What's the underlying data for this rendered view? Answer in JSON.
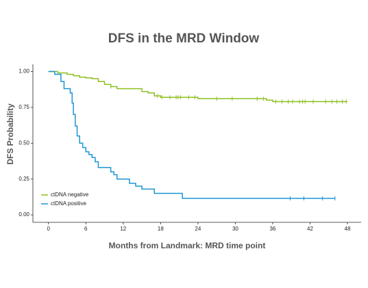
{
  "chart_data": {
    "type": "step",
    "title": "DFS in the MRD Window",
    "x_label": "Months from Landmark: MRD time point",
    "y_label": "DFS Probability",
    "xlim": [
      -2.5,
      50.2
    ],
    "ylim": [
      -0.052,
      1.05
    ],
    "xticks": [
      0,
      6,
      12,
      18,
      24,
      30,
      36,
      42,
      48
    ],
    "yticks": [
      {
        "value": 0,
        "label": "0.00"
      },
      {
        "value": 0.25,
        "label": "0.25"
      },
      {
        "value": 0.5,
        "label": "0.50"
      },
      {
        "value": 0.75,
        "label": "0.75"
      },
      {
        "value": 1,
        "label": "1.00"
      }
    ],
    "grid": false,
    "legend": "bottom-left",
    "series": [
      {
        "name": "ctDNA negative",
        "color": "#8cbf1f",
        "x": [
          0,
          1.5,
          3,
          4,
          5,
          6,
          7,
          8,
          9,
          10,
          11,
          15,
          16,
          17,
          18,
          24,
          35,
          36,
          48
        ],
        "values": [
          1.0,
          0.99,
          0.98,
          0.97,
          0.96,
          0.955,
          0.95,
          0.93,
          0.91,
          0.895,
          0.88,
          0.86,
          0.85,
          0.83,
          0.82,
          0.81,
          0.8,
          0.79,
          0.79
        ],
        "censor_x": [
          10,
          17.5,
          18.2,
          19.5,
          20.5,
          20.8,
          21.2,
          22.5,
          23.5,
          27,
          29.5,
          33.5,
          34.5,
          36.5,
          37.5,
          38.5,
          39.2,
          40.3,
          40.8,
          41.2,
          42.5,
          44.5,
          45.5,
          46.3,
          47.2,
          47.8
        ]
      },
      {
        "name": "ctDNA positive",
        "color": "#1a95d2",
        "x": [
          0,
          1,
          2,
          2.5,
          3.5,
          3.8,
          4,
          4.3,
          4.6,
          5,
          5.5,
          6,
          6.5,
          7,
          7.5,
          8,
          10,
          10.5,
          11,
          13,
          14,
          15,
          17,
          21.5,
          46
        ],
        "values": [
          1.0,
          0.98,
          0.93,
          0.88,
          0.85,
          0.78,
          0.7,
          0.62,
          0.55,
          0.5,
          0.47,
          0.44,
          0.42,
          0.4,
          0.37,
          0.33,
          0.3,
          0.28,
          0.25,
          0.22,
          0.2,
          0.18,
          0.15,
          0.115,
          0.115
        ],
        "censor_x": [
          38.8,
          41,
          44,
          46
        ]
      }
    ]
  }
}
